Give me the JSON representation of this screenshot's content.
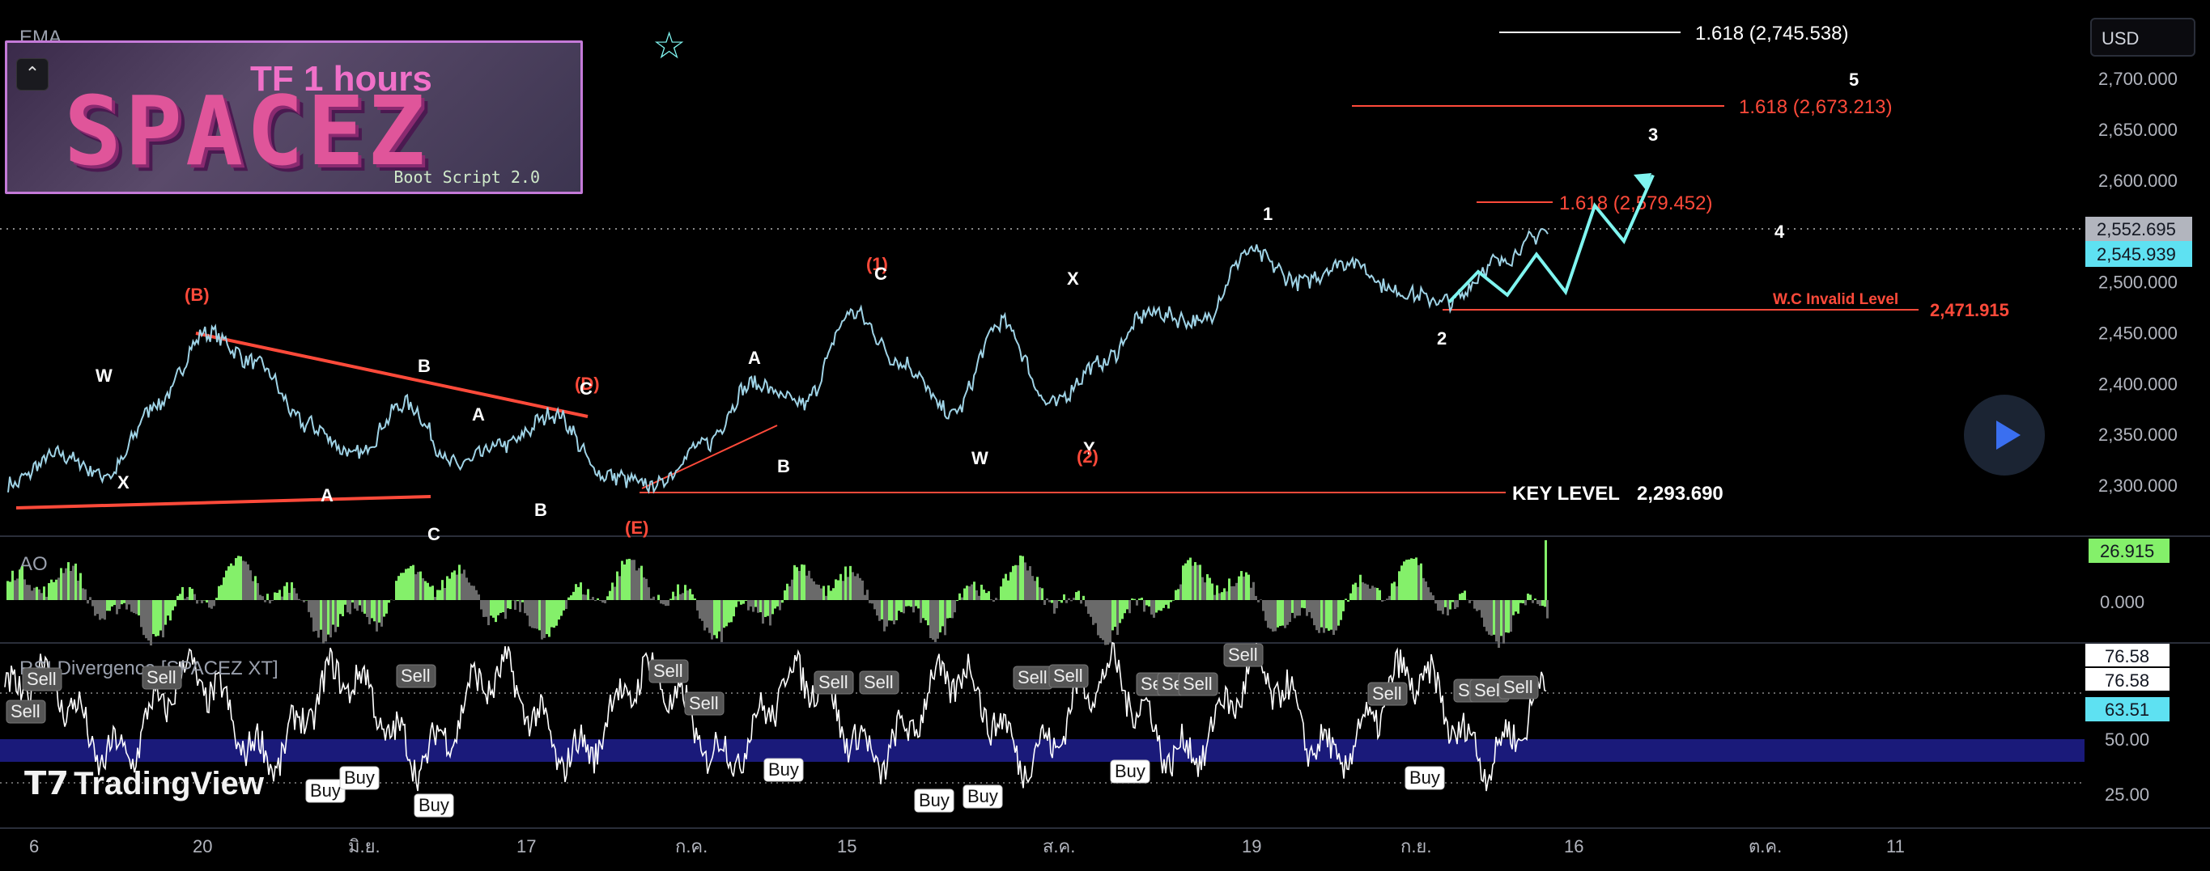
{
  "header": {
    "ema_label": "EMA",
    "currency": "USD",
    "timeframe_banner": "TF 1 hours",
    "logo_text": "SPACEZ",
    "boot_script": "Boot Script 2.0"
  },
  "price_axis": {
    "ticks": [
      "2,700.000",
      "2,650.000",
      "2,600.000",
      "2,550.000",
      "2,500.000",
      "2,450.000",
      "2,400.000",
      "2,350.000",
      "2,300.000"
    ],
    "current_price_label": "2,552.695",
    "last_price_label": "2,545.939"
  },
  "time_axis": {
    "ticks": [
      "6",
      "20",
      "มิ.ย.",
      "17",
      "ก.ค.",
      "15",
      "ส.ค.",
      "19",
      "ก.ย.",
      "16",
      "ต.ค.",
      "11"
    ]
  },
  "levels": {
    "fib_1": "1.618 (2,745.538)",
    "fib_2": "1.618 (2,673.213)",
    "fib_3": "1.618 (2,579.452)",
    "invalid_label": "W.C Invalid Level",
    "invalid_value": "2,471.915",
    "key_label": "KEY LEVEL",
    "key_value": "2,293.690"
  },
  "wave_labels": {
    "white": [
      "W",
      "X",
      "A",
      "B",
      "A",
      "B",
      "A",
      "B",
      "W",
      "X",
      "Y",
      "1",
      "2",
      "3",
      "4",
      "5"
    ],
    "orange": [
      "(B)",
      "(D)",
      "(E)",
      "(1)",
      "(2)",
      "C",
      "C",
      "C"
    ]
  },
  "ao_panel": {
    "label": "AO",
    "value_label": "26.915",
    "zero_label": "0.000"
  },
  "rsi_panel": {
    "label": "RSI Divergence [SPACEZ XT]",
    "value_top": "76.58",
    "value_top2": "76.58",
    "value_current": "63.51",
    "level_50": "50.00",
    "level_25": "25.00",
    "sell_label": "Sell",
    "buy_label": "Buy"
  },
  "watermark": "TradingView",
  "colors": {
    "background": "#000000",
    "price_line": "#9fd3e6",
    "projection": "#7ff5f0",
    "orange": "#ff4a3a",
    "ao_green": "#84f06a",
    "ao_gray": "#6a6a6a",
    "rsi_band": "#1a1a7a",
    "last_price_bg": "#5ee1f2"
  },
  "chart_data": {
    "type": "line",
    "title": "",
    "y_range": [
      2275,
      2730
    ],
    "x_ticks": [
      "6",
      "20",
      "มิ.ย.",
      "17",
      "ก.ค.",
      "15",
      "ส.ค.",
      "19",
      "ก.ย.",
      "16",
      "ต.ค.",
      "11"
    ],
    "anchor_prices": [
      2300,
      2330,
      2310,
      2380,
      2450,
      2420,
      2360,
      2330,
      2380,
      2320,
      2340,
      2370,
      2310,
      2300,
      2340,
      2400,
      2380,
      2470,
      2420,
      2370,
      2460,
      2380,
      2420,
      2470,
      2460,
      2530,
      2500,
      2520,
      2490,
      2480,
      2520,
      2550
    ],
    "projection_path": [
      2490,
      2570,
      2530,
      2605
    ],
    "ao_range": [
      -30,
      30
    ],
    "rsi_range": [
      20,
      85
    ]
  }
}
